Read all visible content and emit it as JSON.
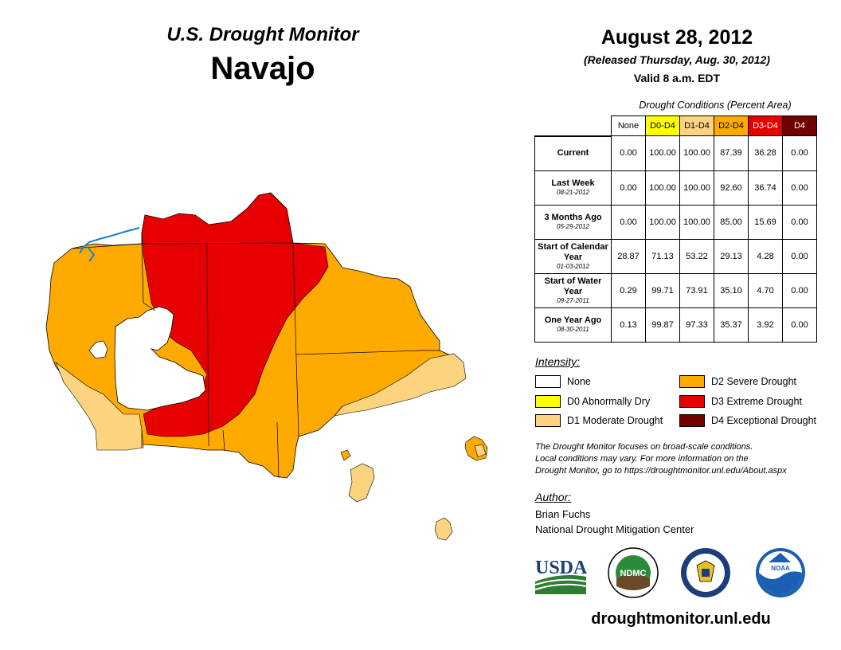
{
  "header": {
    "title": "U.S. Drought Monitor",
    "region": "Navajo",
    "date": "August 28, 2012",
    "released": "(Released Thursday, Aug. 30, 2012)",
    "valid": "Valid 8 a.m. EDT"
  },
  "table": {
    "caption": "Drought Conditions (Percent Area)",
    "columns": [
      {
        "label": "None",
        "color": "#ffffff",
        "text_color": "#000000"
      },
      {
        "label": "D0-D4",
        "color": "#ffff00",
        "text_color": "#000000"
      },
      {
        "label": "D1-D4",
        "color": "#fcd37f",
        "text_color": "#000000"
      },
      {
        "label": "D2-D4",
        "color": "#ffaa00",
        "text_color": "#000000"
      },
      {
        "label": "D3-D4",
        "color": "#e60000",
        "text_color": "#ffffff"
      },
      {
        "label": "D4",
        "color": "#730000",
        "text_color": "#ffffff"
      }
    ],
    "rows": [
      {
        "label": "Current",
        "date": "",
        "values": [
          "0.00",
          "100.00",
          "100.00",
          "87.39",
          "36.28",
          "0.00"
        ]
      },
      {
        "label": "Last Week",
        "date": "08-21-2012",
        "values": [
          "0.00",
          "100.00",
          "100.00",
          "92.60",
          "36.74",
          "0.00"
        ]
      },
      {
        "label": "3 Months Ago",
        "date": "05-29-2012",
        "values": [
          "0.00",
          "100.00",
          "100.00",
          "85.00",
          "15.69",
          "0.00"
        ]
      },
      {
        "label": "Start of Calendar Year",
        "date": "01-03-2012",
        "values": [
          "28.87",
          "71.13",
          "53.22",
          "29.13",
          "4.28",
          "0.00"
        ]
      },
      {
        "label": "Start of Water Year",
        "date": "09-27-2011",
        "values": [
          "0.29",
          "99.71",
          "73.91",
          "35.10",
          "4.70",
          "0.00"
        ]
      },
      {
        "label": "One Year Ago",
        "date": "08-30-2011",
        "values": [
          "0.13",
          "99.87",
          "97.33",
          "35.37",
          "3.92",
          "0.00"
        ]
      }
    ]
  },
  "legend": {
    "title": "Intensity:",
    "items": [
      {
        "label": "None",
        "color": "#ffffff"
      },
      {
        "label": "D0 Abnormally Dry",
        "color": "#ffff00"
      },
      {
        "label": "D1 Moderate Drought",
        "color": "#fcd37f"
      },
      {
        "label": "D2 Severe Drought",
        "color": "#ffaa00"
      },
      {
        "label": "D3 Extreme Drought",
        "color": "#e60000"
      },
      {
        "label": "D4 Exceptional Drought",
        "color": "#730000"
      }
    ]
  },
  "note": {
    "line1": "The Drought Monitor focuses on broad-scale conditions.",
    "line2": "Local conditions may vary. For more information on the",
    "line3": "Drought Monitor, go to https://droughtmonitor.unl.edu/About.aspx"
  },
  "author": {
    "label": "Author:",
    "name": "Brian Fuchs",
    "org": "National Drought Mitigation Center"
  },
  "logos": {
    "usda": "USDA",
    "ndmc": "NDMC",
    "noaa": "NOAA"
  },
  "footer": {
    "url": "droughtmonitor.unl.edu"
  },
  "colors": {
    "none": "#ffffff",
    "d1": "#fcd37f",
    "d2": "#ffaa00",
    "d3": "#e60000",
    "water": "#1a7fd1"
  }
}
